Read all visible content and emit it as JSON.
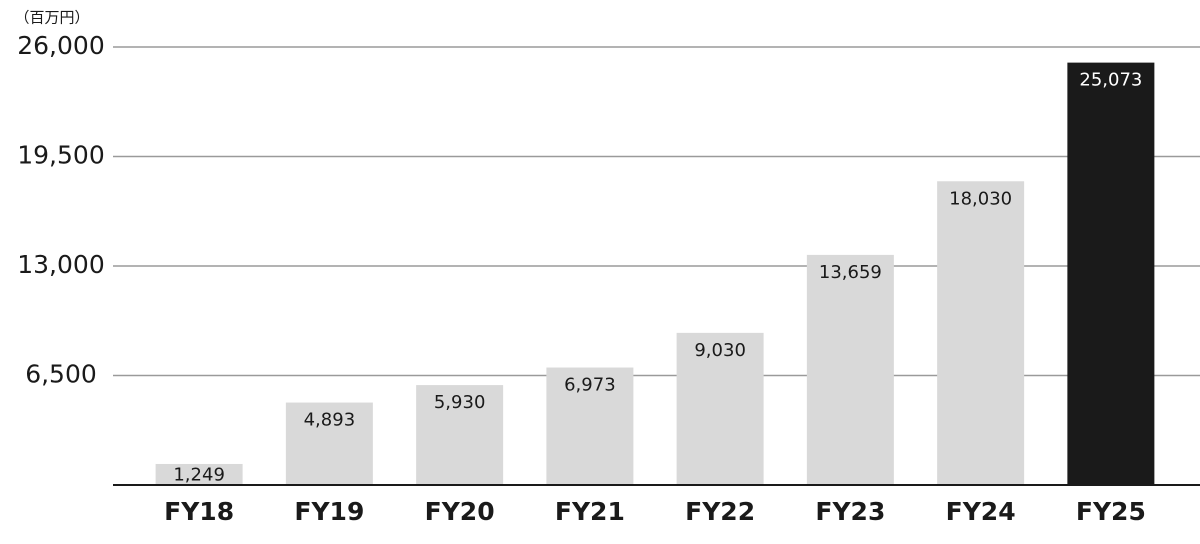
{
  "chart_data": {
    "type": "bar",
    "unit_label": "（百万円）",
    "categories": [
      "FY18",
      "FY19",
      "FY20",
      "FY21",
      "FY22",
      "FY23",
      "FY24",
      "FY25"
    ],
    "values": [
      1249,
      4893,
      5930,
      6973,
      9030,
      13659,
      18030,
      25073
    ],
    "value_labels": [
      "1,249",
      "4,893",
      "5,930",
      "6,973",
      "9,030",
      "13,659",
      "18,030",
      "25,073"
    ],
    "colors": [
      "#d9d9d9",
      "#d9d9d9",
      "#d9d9d9",
      "#d9d9d9",
      "#d9d9d9",
      "#d9d9d9",
      "#d9d9d9",
      "#1a1a1a"
    ],
    "ylim": [
      0,
      26000
    ],
    "yticks": [
      {
        "value": 6500,
        "label": "6,500"
      },
      {
        "value": 13000,
        "label": "13,000"
      },
      {
        "value": 19500,
        "label": "19,500"
      },
      {
        "value": 26000,
        "label": "26,000"
      }
    ],
    "grid": true
  }
}
